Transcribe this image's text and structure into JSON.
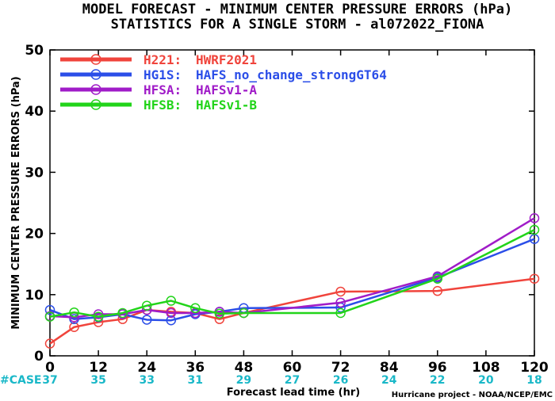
{
  "chart_data": {
    "type": "line",
    "title_line1": "MODEL FORECAST - MINIMUM CENTER PRESSURE ERRORS (hPa)",
    "title_line2": "STATISTICS FOR A SINGLE STORM - al072022_FIONA",
    "xlabel": "Forecast lead time (hr)",
    "ylabel": "MINIMUM CENTER PRESSURE ERRORS (hPa)",
    "xlim": [
      0,
      120
    ],
    "ylim": [
      0,
      50
    ],
    "x_ticks": [
      0,
      12,
      24,
      36,
      48,
      60,
      72,
      84,
      96,
      108,
      120
    ],
    "y_ticks": [
      0,
      10,
      20,
      30,
      40,
      50
    ],
    "legend_position": "top-left",
    "grid": false,
    "case_label": "#CASE",
    "case_counts": [
      "37",
      "35",
      "33",
      "31",
      "29",
      "27",
      "26",
      "24",
      "22",
      "20",
      "18"
    ],
    "credit": "Hurricane project - NOAA/NCEP/EMC",
    "series": [
      {
        "code": "H221:",
        "name": "HWRF2021",
        "color": "#f0443c",
        "x": [
          0,
          6,
          12,
          18,
          24,
          30,
          36,
          42,
          48,
          72,
          96,
          120
        ],
        "y": [
          2.0,
          4.7,
          5.5,
          6.0,
          7.5,
          7.2,
          7.0,
          6.0,
          7.0,
          10.5,
          10.6,
          12.6
        ]
      },
      {
        "code": "HG1S:",
        "name": "HAFS_no_change_strongGT64",
        "color": "#2b4ee8",
        "x": [
          0,
          6,
          12,
          18,
          24,
          30,
          36,
          42,
          48,
          72,
          96,
          120
        ],
        "y": [
          7.5,
          6.0,
          6.3,
          6.8,
          5.9,
          5.8,
          6.8,
          7.2,
          7.8,
          7.9,
          12.8,
          19.1
        ]
      },
      {
        "code": "HFSA:",
        "name": "HAFSv1-A",
        "color": "#a01cc8",
        "x": [
          0,
          6,
          12,
          18,
          24,
          30,
          36,
          42,
          48,
          72,
          96,
          120
        ],
        "y": [
          6.5,
          6.3,
          6.8,
          6.8,
          7.5,
          7.0,
          7.0,
          7.2,
          7.0,
          8.7,
          13.0,
          22.5
        ]
      },
      {
        "code": "HFSB:",
        "name": "HAFSv1-B",
        "color": "#22d41a",
        "x": [
          0,
          6,
          12,
          18,
          24,
          30,
          36,
          42,
          48,
          72,
          96,
          120
        ],
        "y": [
          6.4,
          7.1,
          6.4,
          7.0,
          8.2,
          9.0,
          7.8,
          6.9,
          7.0,
          7.0,
          12.6,
          20.6
        ]
      }
    ]
  }
}
